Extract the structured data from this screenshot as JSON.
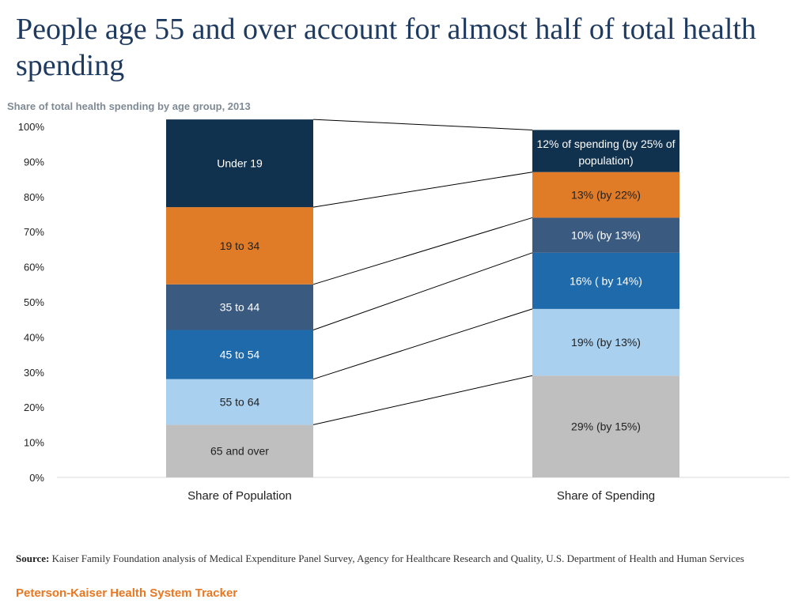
{
  "header": {
    "title": "People age 55 and over account for almost half of total health spending",
    "subtitle": "Share of total health spending by age group, 2013"
  },
  "chart_data": {
    "type": "bar",
    "stacked": true,
    "percent": true,
    "categories": [
      "Share of Population",
      "Share of Spending"
    ],
    "ylim": [
      0,
      100
    ],
    "yticks": [
      "0%",
      "10%",
      "20%",
      "30%",
      "40%",
      "50%",
      "60%",
      "70%",
      "80%",
      "90%",
      "100%"
    ],
    "series": [
      {
        "name": "65 and over",
        "color": "#bfbfbf",
        "values": [
          15,
          29
        ],
        "labels": [
          "65 and over",
          "29% (by 15%)"
        ]
      },
      {
        "name": "55 to 64",
        "color": "#a9d0ef",
        "values": [
          13,
          19
        ],
        "labels": [
          "55 to 64",
          "19% (by 13%)"
        ]
      },
      {
        "name": "45 to 54",
        "color": "#1f6aab",
        "values": [
          14,
          16
        ],
        "labels": [
          "45 to 54",
          "16% ( by 14%)"
        ]
      },
      {
        "name": "35 to 44",
        "color": "#3b5a80",
        "values": [
          13,
          10
        ],
        "labels": [
          "35 to 44",
          "10% (by 13%)"
        ]
      },
      {
        "name": "19 to 34",
        "color": "#e07b28",
        "values": [
          22,
          13
        ],
        "labels": [
          "19 to 34",
          "13% (by 22%)"
        ]
      },
      {
        "name": "Under 19",
        "color": "#10324f",
        "values": [
          25,
          12
        ],
        "labels": [
          "Under 19",
          "12% of spending (by 25% of population)"
        ]
      }
    ]
  },
  "footer": {
    "source_label": "Source:",
    "source_text": " Kaiser Family Foundation analysis of Medical Expenditure Panel Survey, Agency for Healthcare Research and Quality, U.S. Department of Health and Human Services",
    "brand": "Peterson-Kaiser Health System Tracker"
  }
}
